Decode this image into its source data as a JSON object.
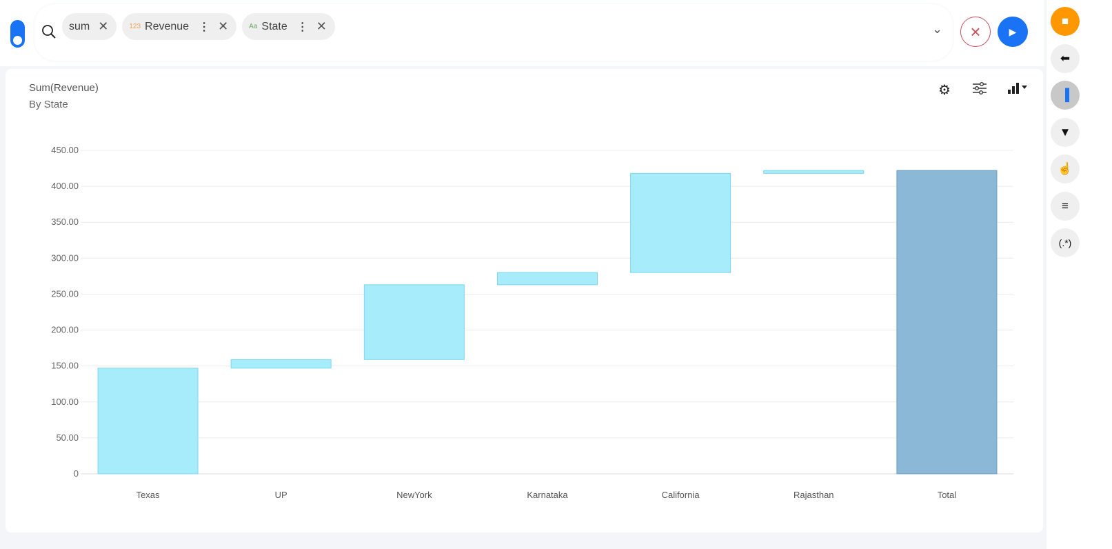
{
  "query": {
    "chips": [
      {
        "label": "sum",
        "type_tag": "",
        "has_menu": false
      },
      {
        "label": "Revenue",
        "type_tag": "123",
        "tag_color": "#f0a050",
        "has_menu": true
      },
      {
        "label": "State",
        "type_tag": "Aa",
        "tag_color": "#6aaa6a",
        "has_menu": true
      }
    ]
  },
  "colors": {
    "accent": "#1a73f5",
    "bar": "#a6ecfb",
    "bar_stroke": "#7fd6ee",
    "total_bar": "#8cb8d8",
    "total_stroke": "#6b9cc0",
    "cancel": "#c9505a",
    "sidebar_top": "#ff9800"
  },
  "sidebar": [
    "sim-card-icon",
    "back-arrow-icon",
    "bar-chart-icon",
    "filter-icon",
    "pointer-hand-icon",
    "database-icon",
    "regex-icon"
  ],
  "sidebar_regex_label": "(.*)",
  "chart_data": {
    "type": "waterfall",
    "title": "Sum(Revenue)",
    "subtitle": "By State",
    "categories": [
      "Texas",
      "UP",
      "NewYork",
      "Karnataka",
      "California",
      "Rajasthan",
      "Total"
    ],
    "values": [
      147,
      12,
      104,
      17,
      138,
      4,
      422
    ],
    "total_index": 6,
    "ylim": [
      0,
      450
    ],
    "yticks": [
      "0",
      "50.00",
      "100.00",
      "150.00",
      "200.00",
      "250.00",
      "300.00",
      "350.00",
      "400.00",
      "450.00"
    ],
    "grid": true
  }
}
